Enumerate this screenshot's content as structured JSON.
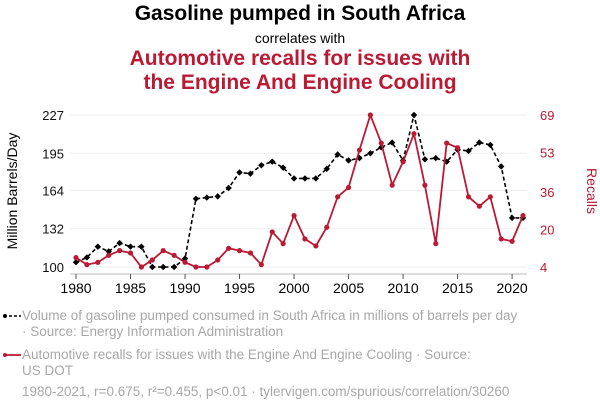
{
  "header": {
    "title": "Gasoline pumped in South Africa",
    "connector": "correlates with",
    "subtitle_line1": "Automotive recalls for issues with",
    "subtitle_line2": "the Engine And Engine Cooling"
  },
  "colors": {
    "series1": "#000000",
    "series2": "#ba1a33",
    "grid": "#eeeeee",
    "legend_text": "#a8a8a8"
  },
  "legend": {
    "series1_text": "Volume of gasoline pumped consumed in South Africa in millions of barrels per day",
    "series1_source": "· Source: Energy Information Administration",
    "series2_text": "Automotive recalls for issues with the Engine And Engine Cooling · Source:",
    "series2_source": "US DOT"
  },
  "footer": "1980-2021, r=0.675, r²=0.455, p<0.01 · tylervigen.com/spurious/correlation/30260",
  "chart_data": {
    "type": "line",
    "title": "Gasoline pumped in South Africa correlates with Automotive recalls for issues with the Engine And Engine Cooling",
    "xlabel": "",
    "ylabel_left": "Million Barrels/Day",
    "ylabel_right": "Recalls",
    "x": [
      1980,
      1981,
      1982,
      1983,
      1984,
      1985,
      1986,
      1987,
      1988,
      1989,
      1990,
      1991,
      1992,
      1993,
      1994,
      1995,
      1996,
      1997,
      1998,
      1999,
      2000,
      2001,
      2002,
      2003,
      2004,
      2005,
      2006,
      2007,
      2008,
      2009,
      2010,
      2011,
      2012,
      2013,
      2014,
      2015,
      2016,
      2017,
      2018,
      2019,
      2020,
      2021
    ],
    "x_ticks": [
      "1980",
      "1985",
      "1990",
      "1995",
      "2000",
      "2005",
      "2010",
      "2015",
      "2020"
    ],
    "xlim": [
      1980,
      2021
    ],
    "y_left_ticks": [
      "100",
      "132",
      "164",
      "195",
      "227"
    ],
    "y_left_lim": [
      100,
      227
    ],
    "y_right_ticks": [
      "4",
      "20",
      "36",
      "53",
      "69"
    ],
    "y_right_lim": [
      4,
      69
    ],
    "grid": true,
    "legend_position": "bottom",
    "series": [
      {
        "name": "Volume of gasoline pumped consumed in South Africa in millions of barrels per day",
        "axis": "left",
        "style": "dashed-diamond",
        "values": [
          104,
          108,
          117,
          113,
          120,
          117,
          117,
          100,
          100,
          100,
          107,
          157,
          158,
          159,
          166,
          179,
          178,
          185,
          188,
          183,
          174,
          174,
          174,
          182,
          194,
          189,
          191,
          195,
          200,
          204,
          189,
          227,
          190,
          191,
          188,
          198,
          197,
          204,
          202,
          184,
          141,
          141
        ]
      },
      {
        "name": "Automotive recalls for issues with the Engine And Engine Cooling",
        "axis": "right",
        "style": "solid-circle",
        "values": [
          8,
          5,
          6,
          9,
          11,
          10,
          4,
          7,
          11,
          9,
          6,
          4,
          4,
          7,
          12,
          11,
          10,
          5,
          19,
          14,
          26,
          16,
          13,
          21,
          34,
          38,
          54,
          69,
          57,
          39,
          49,
          61,
          39,
          14,
          57,
          55,
          34,
          30,
          34,
          16,
          15,
          26
        ]
      }
    ]
  }
}
